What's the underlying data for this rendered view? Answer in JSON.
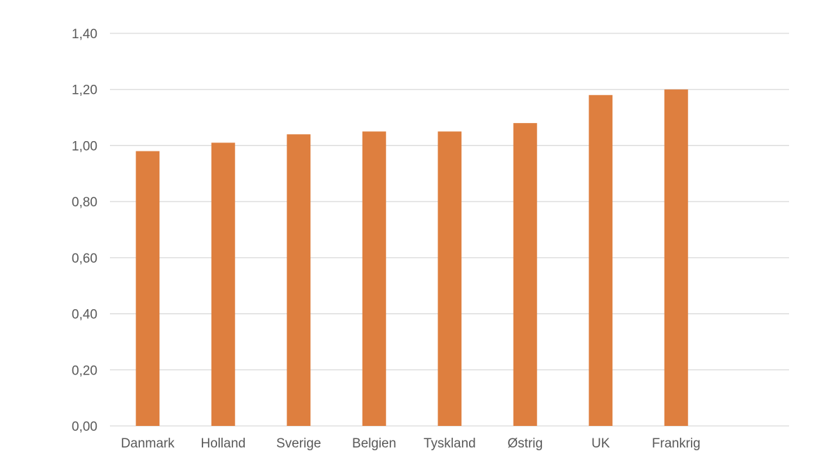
{
  "chart_data": {
    "type": "bar",
    "categories": [
      "Danmark",
      "Holland",
      "Sverige",
      "Belgien",
      "Tyskland",
      "Østrig",
      "UK",
      "Frankrig"
    ],
    "values": [
      0.98,
      1.01,
      1.04,
      1.05,
      1.05,
      1.08,
      1.18,
      1.2
    ],
    "yticks": [
      "0,00",
      "0,20",
      "0,40",
      "0,60",
      "0,80",
      "1,00",
      "1,20",
      "1,40"
    ],
    "ylim": [
      0,
      1.4
    ],
    "grid": true,
    "legend": "none",
    "bar_color": "#DE7F3F",
    "title": "",
    "xlabel": "",
    "ylabel": ""
  }
}
